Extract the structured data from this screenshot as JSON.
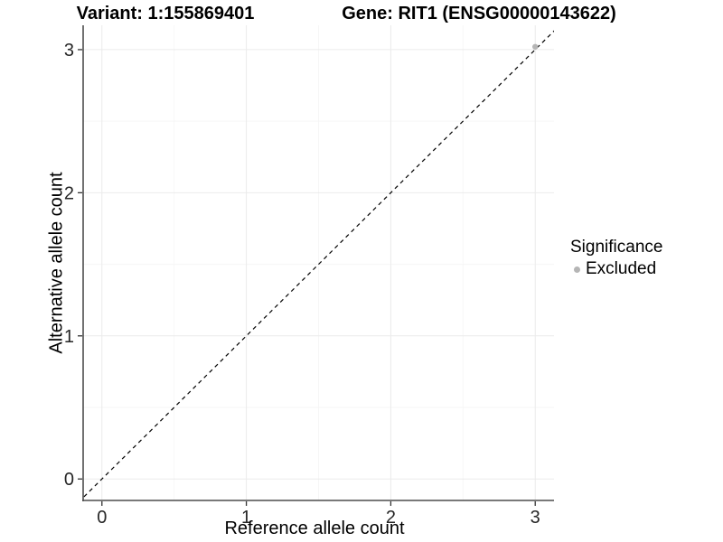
{
  "figure": {
    "title_left": "Variant: 1:155869401",
    "title_right": "Gene: RIT1 (ENSG00000143622)"
  },
  "chart_data": {
    "type": "scatter",
    "title": "Variant: 1:155869401   Gene: RIT1 (ENSG00000143622)",
    "xlabel": "Reference allele count",
    "ylabel": "Alternative allele count",
    "xlim": [
      -0.13,
      3.13
    ],
    "ylim": [
      -0.15,
      3.17
    ],
    "x_ticks": [
      0,
      1,
      2,
      3
    ],
    "y_ticks": [
      0,
      1,
      2,
      3
    ],
    "minor_ticks_x": [
      0.5,
      1.5,
      2.5
    ],
    "minor_ticks_y": [
      0.5,
      1.5,
      2.5
    ],
    "grid": "major and minor, light gray on white panel",
    "identity_line": {
      "style": "dashed",
      "color": "#000000",
      "from": [
        -0.2,
        -0.2
      ],
      "to": [
        3.25,
        3.25
      ]
    },
    "series": [
      {
        "name": "Excluded",
        "color": "#b5b5b5",
        "points": [
          {
            "x": 3.0,
            "y": 3.02
          }
        ]
      }
    ],
    "legend": {
      "title": "Significance",
      "position": "right",
      "entries": [
        {
          "label": "Excluded",
          "color": "#b5b5b5"
        }
      ]
    },
    "colors": {
      "axis_line": "#4d4d4d",
      "tick_mark": "#333333",
      "tick_label": "#262626",
      "grid_major": "#ebebeb",
      "grid_minor": "#f6f6f6",
      "panel_background": "#ffffff"
    }
  }
}
